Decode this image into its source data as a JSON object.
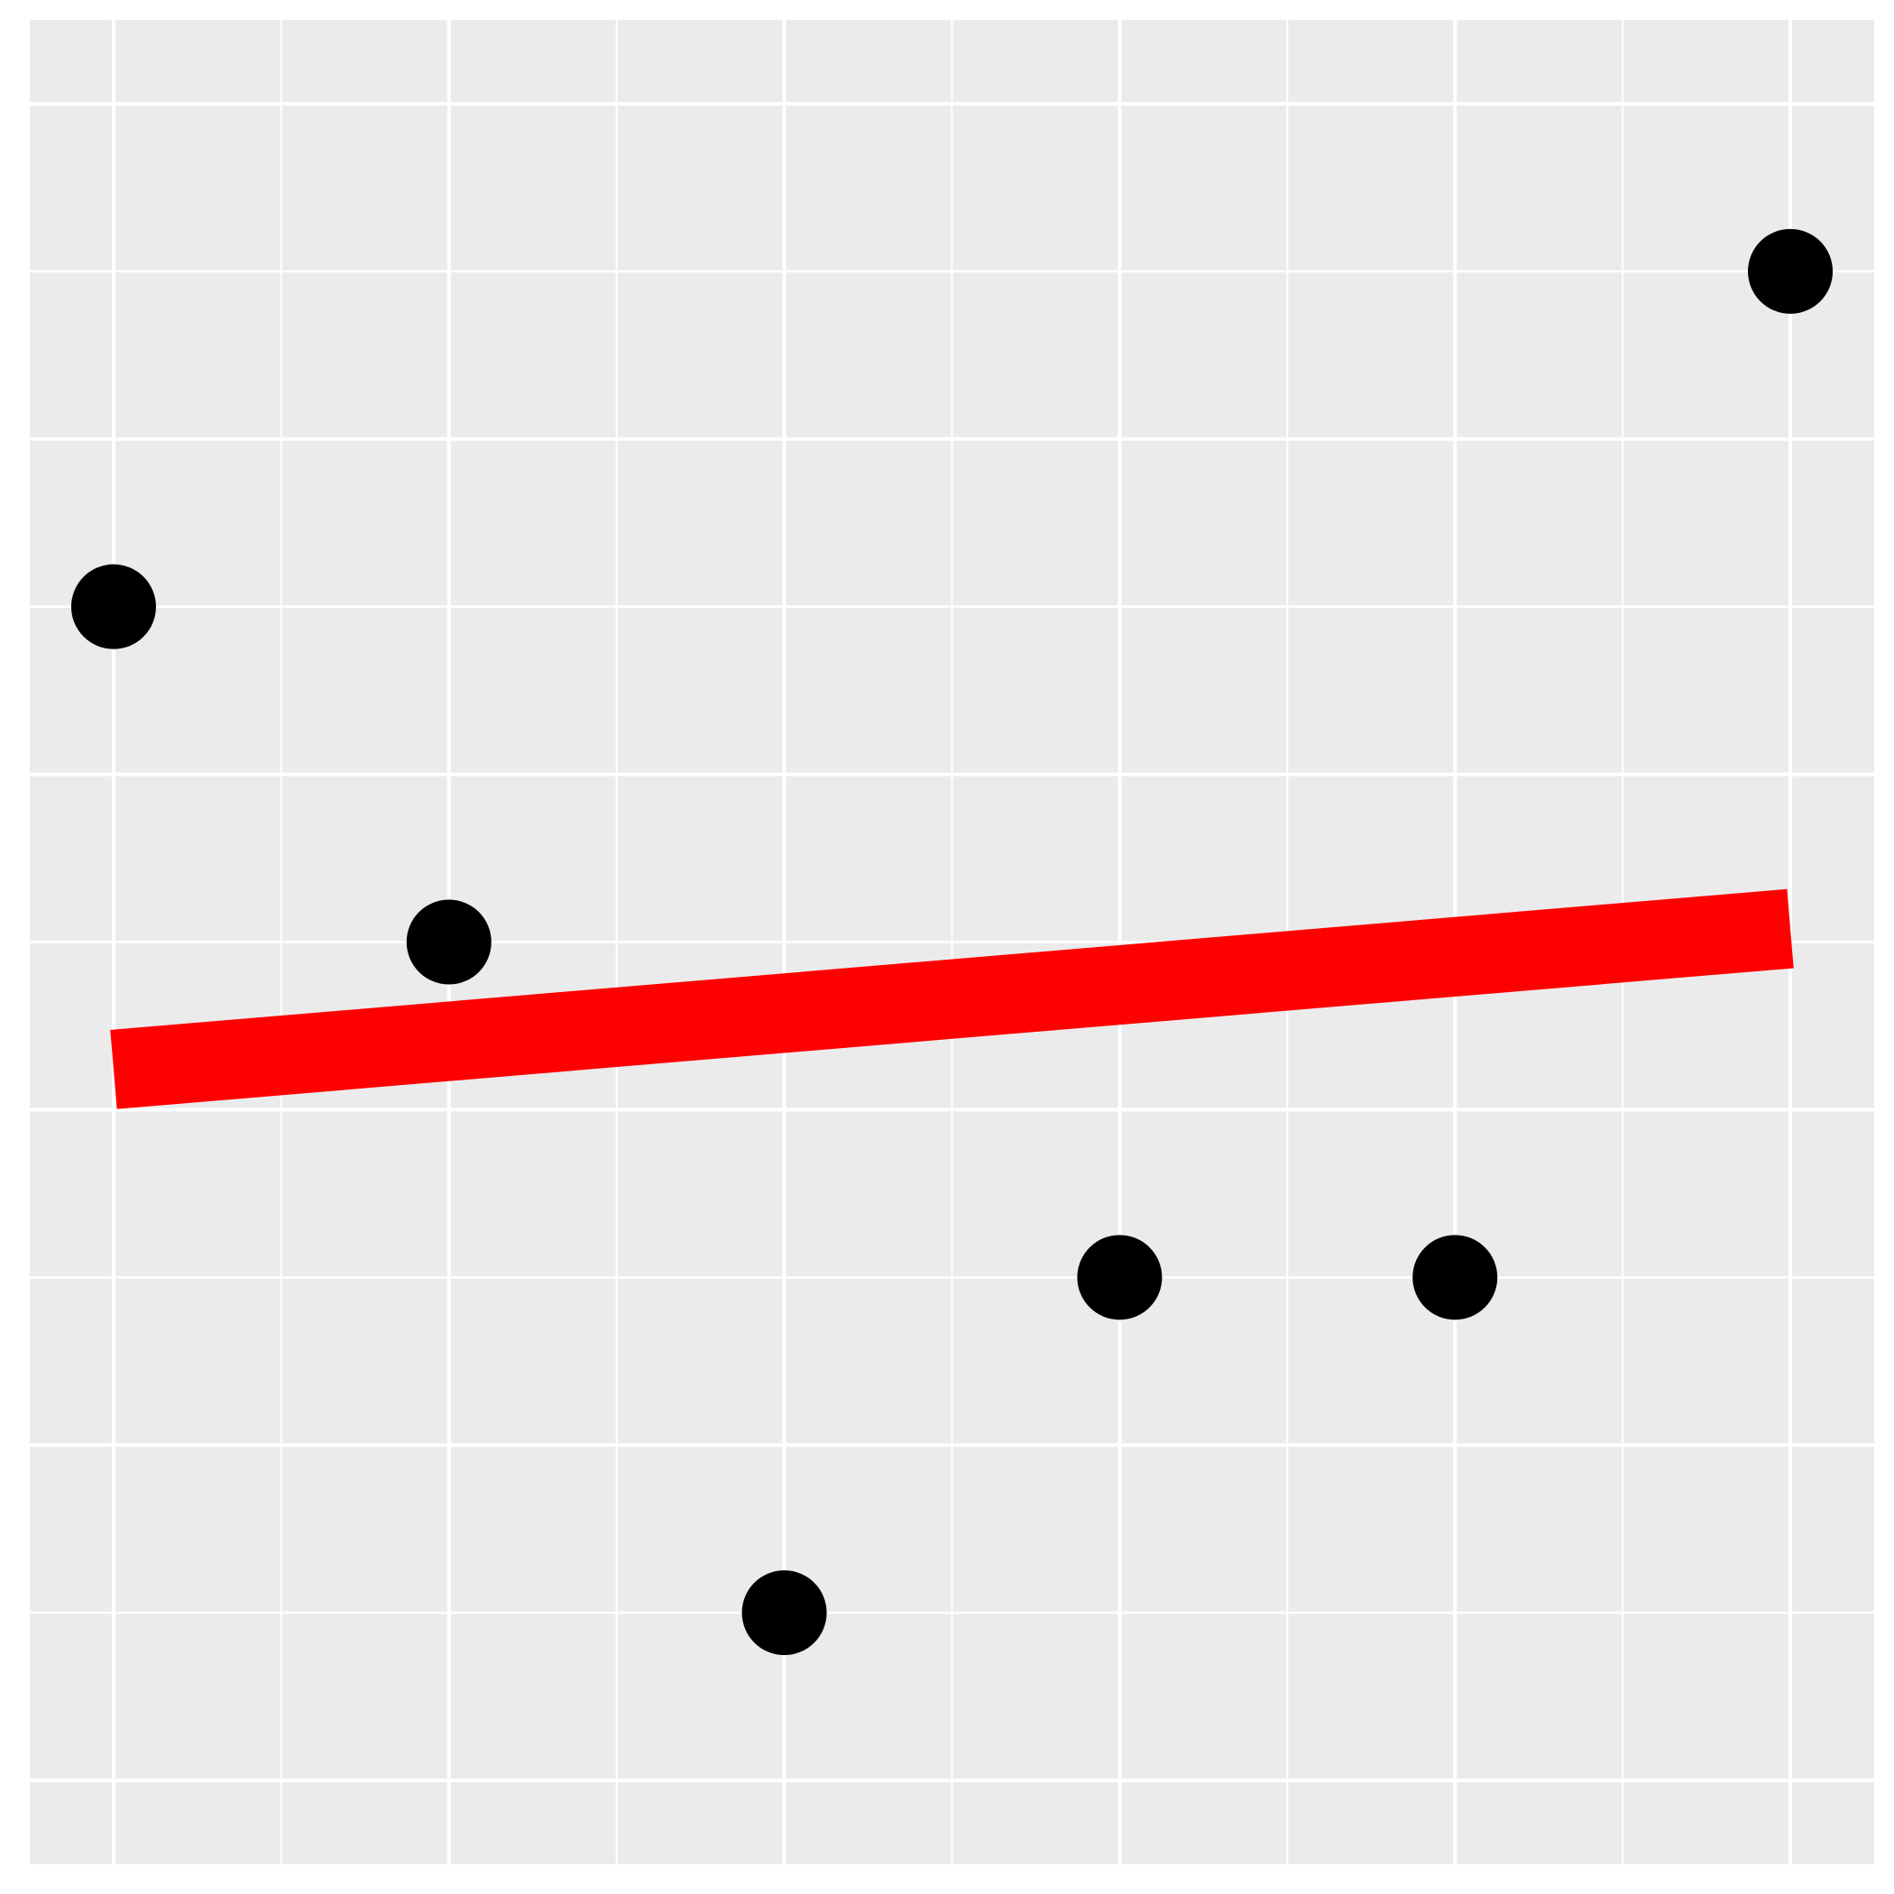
{
  "chart_data": {
    "type": "scatter",
    "title": "",
    "xlabel": "",
    "ylabel": "",
    "xlim": [
      0.75,
      6.25
    ],
    "ylim": [
      -0.25,
      5.25
    ],
    "major_x": [
      1,
      2,
      3,
      4,
      5,
      6
    ],
    "major_y": [
      0,
      0.5,
      1,
      1.5,
      2,
      2.5,
      3,
      3.5,
      4,
      4.5,
      5
    ],
    "minor_x": [
      1.5,
      2.5,
      3.5,
      4.5,
      5.5
    ],
    "grid": true,
    "background": "#EBEBEB",
    "grid_color": "#FFFFFF",
    "point_color": "#000000",
    "line_color": "#FF0000",
    "series": [
      {
        "type": "scatter",
        "x": [
          1,
          2,
          3,
          4,
          5,
          6
        ],
        "y": [
          3.5,
          2.5,
          0.5,
          1.5,
          1.5,
          4.5
        ]
      },
      {
        "type": "line",
        "x": [
          1,
          6
        ],
        "y": [
          2.12,
          2.54
        ]
      }
    ]
  }
}
